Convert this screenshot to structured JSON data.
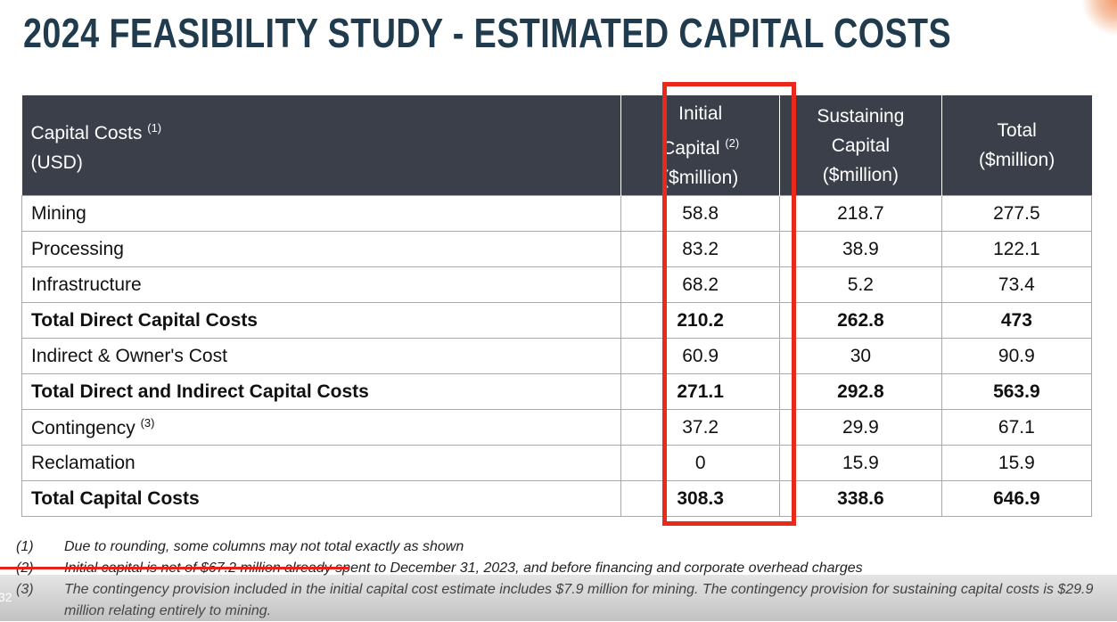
{
  "header": {
    "title": "2024 FEASIBILITY STUDY - ESTIMATED CAPITAL COSTS"
  },
  "table": {
    "columns": [
      {
        "lines": [
          "Capital Costs",
          "(USD)"
        ],
        "note": "(1)"
      },
      {
        "lines": [
          "Initial",
          "Capital",
          "($million)"
        ],
        "note": "(2)"
      },
      {
        "lines": [
          "Sustaining",
          "Capital",
          "($million)"
        ]
      },
      {
        "lines": [
          "Total",
          "($million)"
        ]
      }
    ],
    "rows": [
      {
        "label": "Mining",
        "values": [
          58.8,
          218.7,
          277.5
        ]
      },
      {
        "label": "Processing",
        "values": [
          83.2,
          38.9,
          122.1
        ]
      },
      {
        "label": "Infrastructure",
        "values": [
          68.2,
          5.2,
          73.4
        ]
      },
      {
        "label": "Total Direct Capital Costs",
        "values": [
          210.2,
          262.8,
          473
        ],
        "bold": true
      },
      {
        "label": "Indirect & Owner's Cost",
        "values": [
          60.9,
          30,
          90.9
        ]
      },
      {
        "label": "Total Direct and Indirect Capital Costs",
        "values": [
          271.1,
          292.8,
          563.9
        ],
        "bold": true
      },
      {
        "label": "Contingency",
        "note": "(3)",
        "values": [
          37.2,
          29.9,
          67.1
        ]
      },
      {
        "label": "Reclamation",
        "values": [
          0,
          15.9,
          15.9
        ]
      },
      {
        "label": "Total Capital Costs",
        "values": [
          308.3,
          338.6,
          646.9
        ],
        "bold": true
      }
    ]
  },
  "footnotes": [
    {
      "marker": "(1)",
      "text": "Due to rounding, some columns may not total exactly as shown"
    },
    {
      "marker": "(2)",
      "text": "Initial capital is net of $67.2 million already spent to December 31, 2023, and before financing and corporate overhead charges"
    },
    {
      "marker": "(3)",
      "text": "The contingency provision included in the initial capital cost estimate includes $7.9 million for mining. The contingency provision for sustaining capital costs is $29.9 million relating entirely to mining."
    }
  ],
  "player": {
    "time": "32"
  }
}
